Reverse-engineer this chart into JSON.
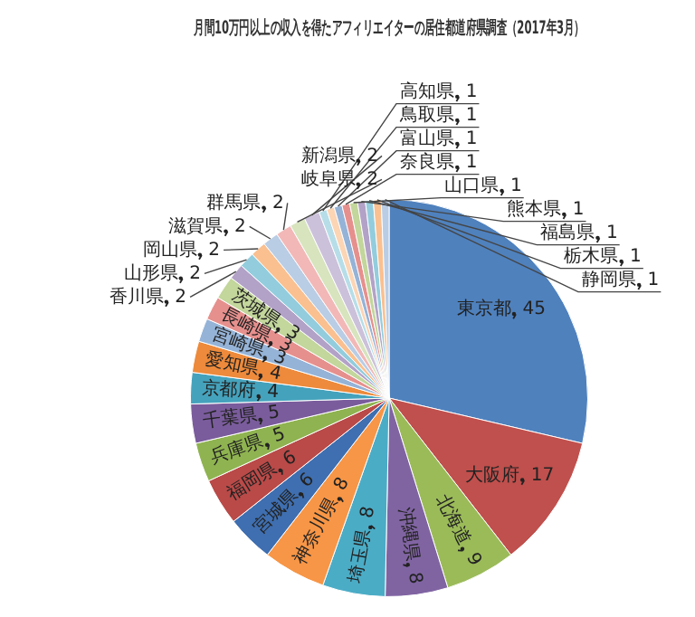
{
  "chart_data": {
    "type": "pie",
    "title": "月間10万円以上の収入を得たアフィリエイターの居住都道府県調査（2017年3月）",
    "categories": [
      "東京都",
      "大阪府",
      "北海道",
      "沖縄県",
      "埼玉県",
      "神奈川県",
      "宮城県",
      "福岡県",
      "兵庫県",
      "千葉県",
      "京都府",
      "愛知県",
      "宮崎県",
      "長崎県",
      "茨城県",
      "香川県",
      "山形県",
      "岡山県",
      "滋賀県",
      "群馬県",
      "岐阜県",
      "新潟県",
      "高知県",
      "鳥取県",
      "富山県",
      "奈良県",
      "山口県",
      "熊本県",
      "福島県",
      "栃木県",
      "静岡県"
    ],
    "values": [
      45,
      17,
      9,
      8,
      8,
      8,
      6,
      6,
      5,
      5,
      4,
      4,
      3,
      3,
      3,
      2,
      2,
      2,
      2,
      2,
      2,
      2,
      1,
      1,
      1,
      1,
      1,
      1,
      1,
      1,
      1
    ],
    "colors": [
      "#4f81bd",
      "#c0504d",
      "#9bbb59",
      "#8064a2",
      "#4bacc6",
      "#f79646",
      "#3f6fb0",
      "#b94a48",
      "#8fb350",
      "#7a5c9c",
      "#45a2bc",
      "#ed8a3b",
      "#95b3d7",
      "#e6908e",
      "#c3d69b",
      "#b3a2c7",
      "#93cddd",
      "#fac090",
      "#b9cde5",
      "#f2b8b7",
      "#d7e4bd",
      "#ccc1da",
      "#b7dee8",
      "#fcd5b5",
      "#95b3d7",
      "#e6908e",
      "#c3d69b",
      "#b3a2c7",
      "#93cddd",
      "#fac090",
      "#b9cde5"
    ],
    "data_labels": true,
    "legend": false
  }
}
